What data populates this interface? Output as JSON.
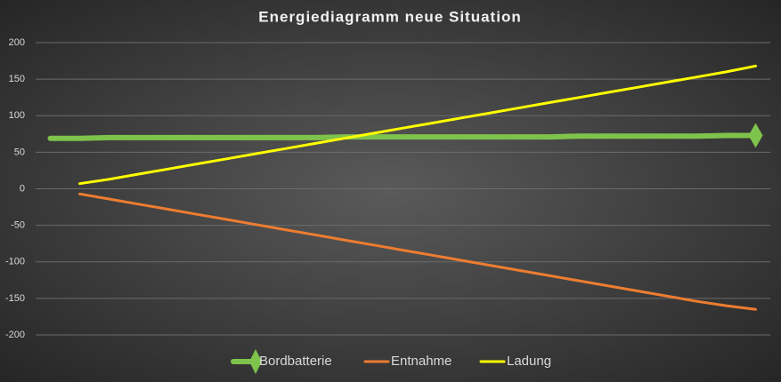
{
  "chart_data": {
    "type": "line",
    "title": "Energiediagramm neue Situation",
    "categories": [
      null,
      null,
      null,
      null,
      null,
      null,
      null,
      null,
      null,
      null,
      null,
      null,
      null,
      null,
      null,
      null,
      null,
      null,
      null,
      null,
      null,
      null,
      null,
      null,
      null
    ],
    "series": [
      {
        "name": "Bordbatterie",
        "color": "#7ec34b",
        "marker": "diamond",
        "values": [
          69,
          69,
          70,
          70,
          70,
          70,
          70,
          70,
          70,
          70,
          71,
          71,
          71,
          71,
          71,
          71,
          71,
          71,
          72,
          72,
          72,
          72,
          72,
          73,
          73
        ]
      },
      {
        "name": "Entnahme",
        "color": "#ed7d31",
        "values": [
          null,
          -7,
          -14,
          -21,
          -28,
          -35,
          -42,
          -49,
          -56,
          -63,
          -70,
          -77,
          -84,
          -91,
          -98,
          -105,
          -112,
          -119,
          -126,
          -133,
          -140,
          -147,
          -154,
          -160,
          -165
        ]
      },
      {
        "name": "Ladung",
        "color": "#ffff00",
        "values": [
          null,
          7,
          13,
          20,
          27,
          34,
          41,
          48,
          55,
          62,
          69,
          76,
          83,
          90,
          97,
          104,
          111,
          118,
          125,
          132,
          139,
          146,
          153,
          160,
          168
        ]
      }
    ],
    "ylim": [
      -200,
      200
    ],
    "yticks": [
      -200,
      -150,
      -100,
      -50,
      0,
      50,
      100,
      150,
      200
    ],
    "grid": true
  }
}
